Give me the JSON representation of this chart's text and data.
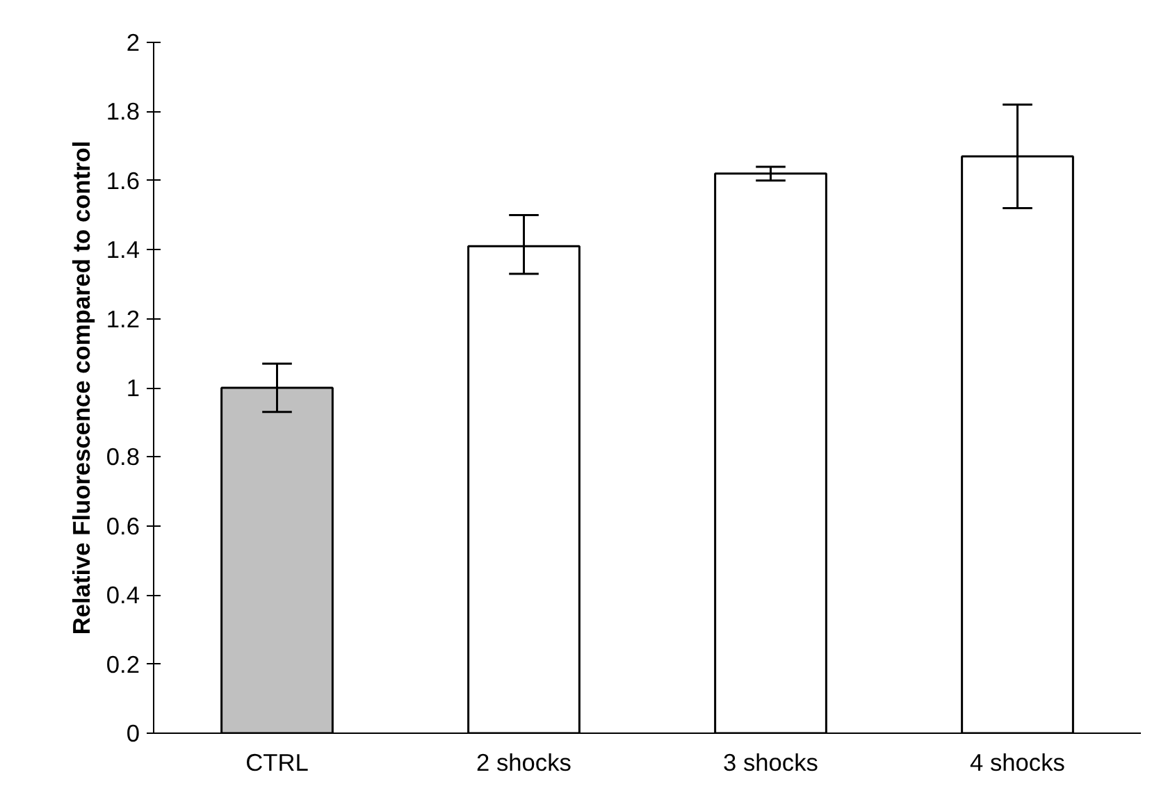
{
  "chart_data": {
    "type": "bar",
    "ylabel": "Relative Fluorescence compared to control",
    "categories": [
      "CTRL",
      "2 shocks",
      "3 shocks",
      "4 shocks"
    ],
    "values": [
      1.0,
      1.41,
      1.62,
      1.67
    ],
    "errors": [
      [
        0.93,
        1.07
      ],
      [
        1.33,
        1.5
      ],
      [
        1.6,
        1.64
      ],
      [
        1.52,
        1.82
      ]
    ],
    "colors": [
      "#c0c0c0",
      "#ffffff",
      "#ffffff",
      "#ffffff"
    ],
    "ylim": [
      0,
      2
    ],
    "yticks": [
      0,
      0.2,
      0.4,
      0.6,
      0.8,
      1,
      1.2,
      1.4,
      1.6,
      1.8,
      2
    ],
    "grid": false
  }
}
